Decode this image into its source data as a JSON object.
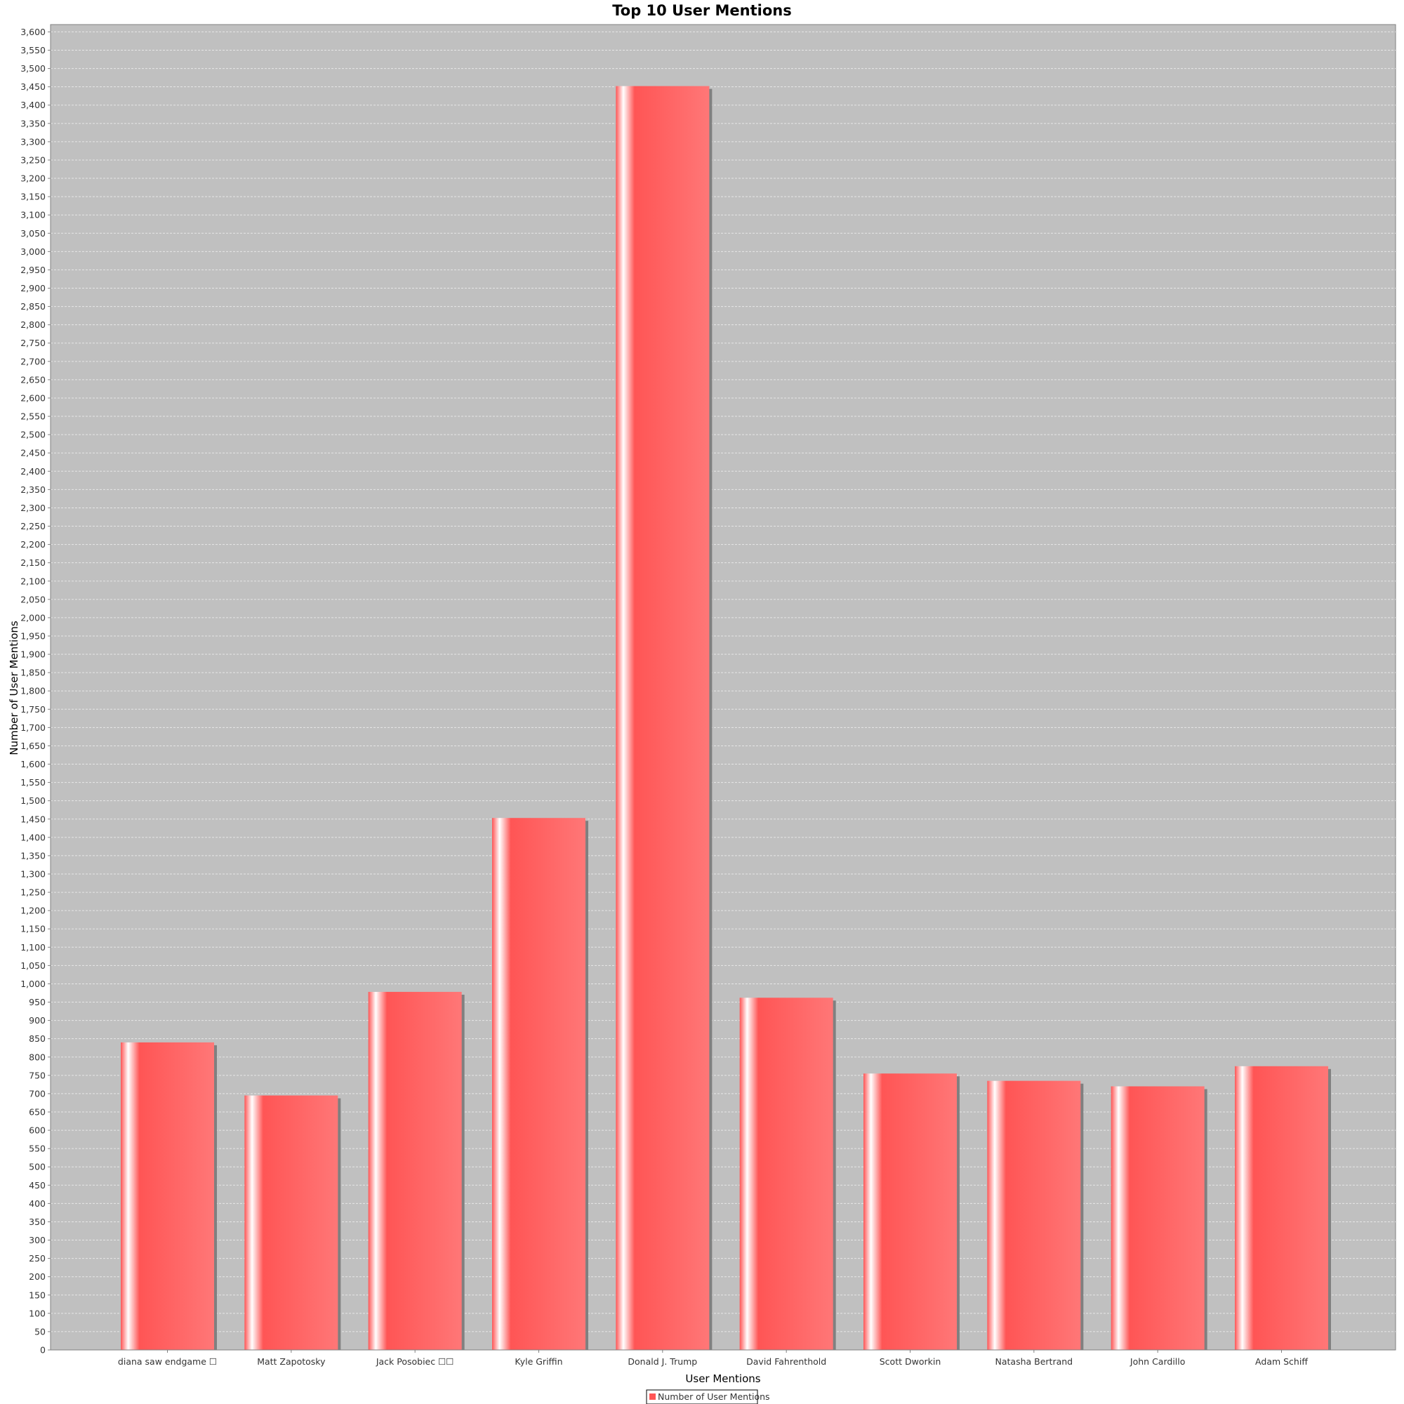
{
  "chart_data": {
    "type": "bar",
    "title": "Top 10 User Mentions",
    "xlabel": "User Mentions",
    "ylabel": "Number of User Mentions",
    "categories": [
      "diana saw endgame ☐",
      "Matt Zapotosky",
      "Jack Posobiec ☐☐",
      "Kyle Griffin",
      "Donald J. Trump",
      "David Fahrenthold",
      "Scott Dworkin",
      "Natasha Bertrand",
      "John Cardillo",
      "Adam Schiff"
    ],
    "series": [
      {
        "name": "Number of User Mentions",
        "values": [
          840,
          695,
          978,
          1453,
          3452,
          962,
          755,
          735,
          720,
          775
        ]
      }
    ],
    "ylim": [
      0,
      3620
    ],
    "ytick_step": 50,
    "grid": true,
    "legend_position": "bottom-center",
    "colors": {
      "bar": "#ff5555",
      "bar_highlight": "#ffffff",
      "bar_light": "#ff7777",
      "shadow": "#808080",
      "plot_background": "#c0c0c0",
      "grid": "#e6e6e6",
      "axis": "#808080"
    }
  }
}
